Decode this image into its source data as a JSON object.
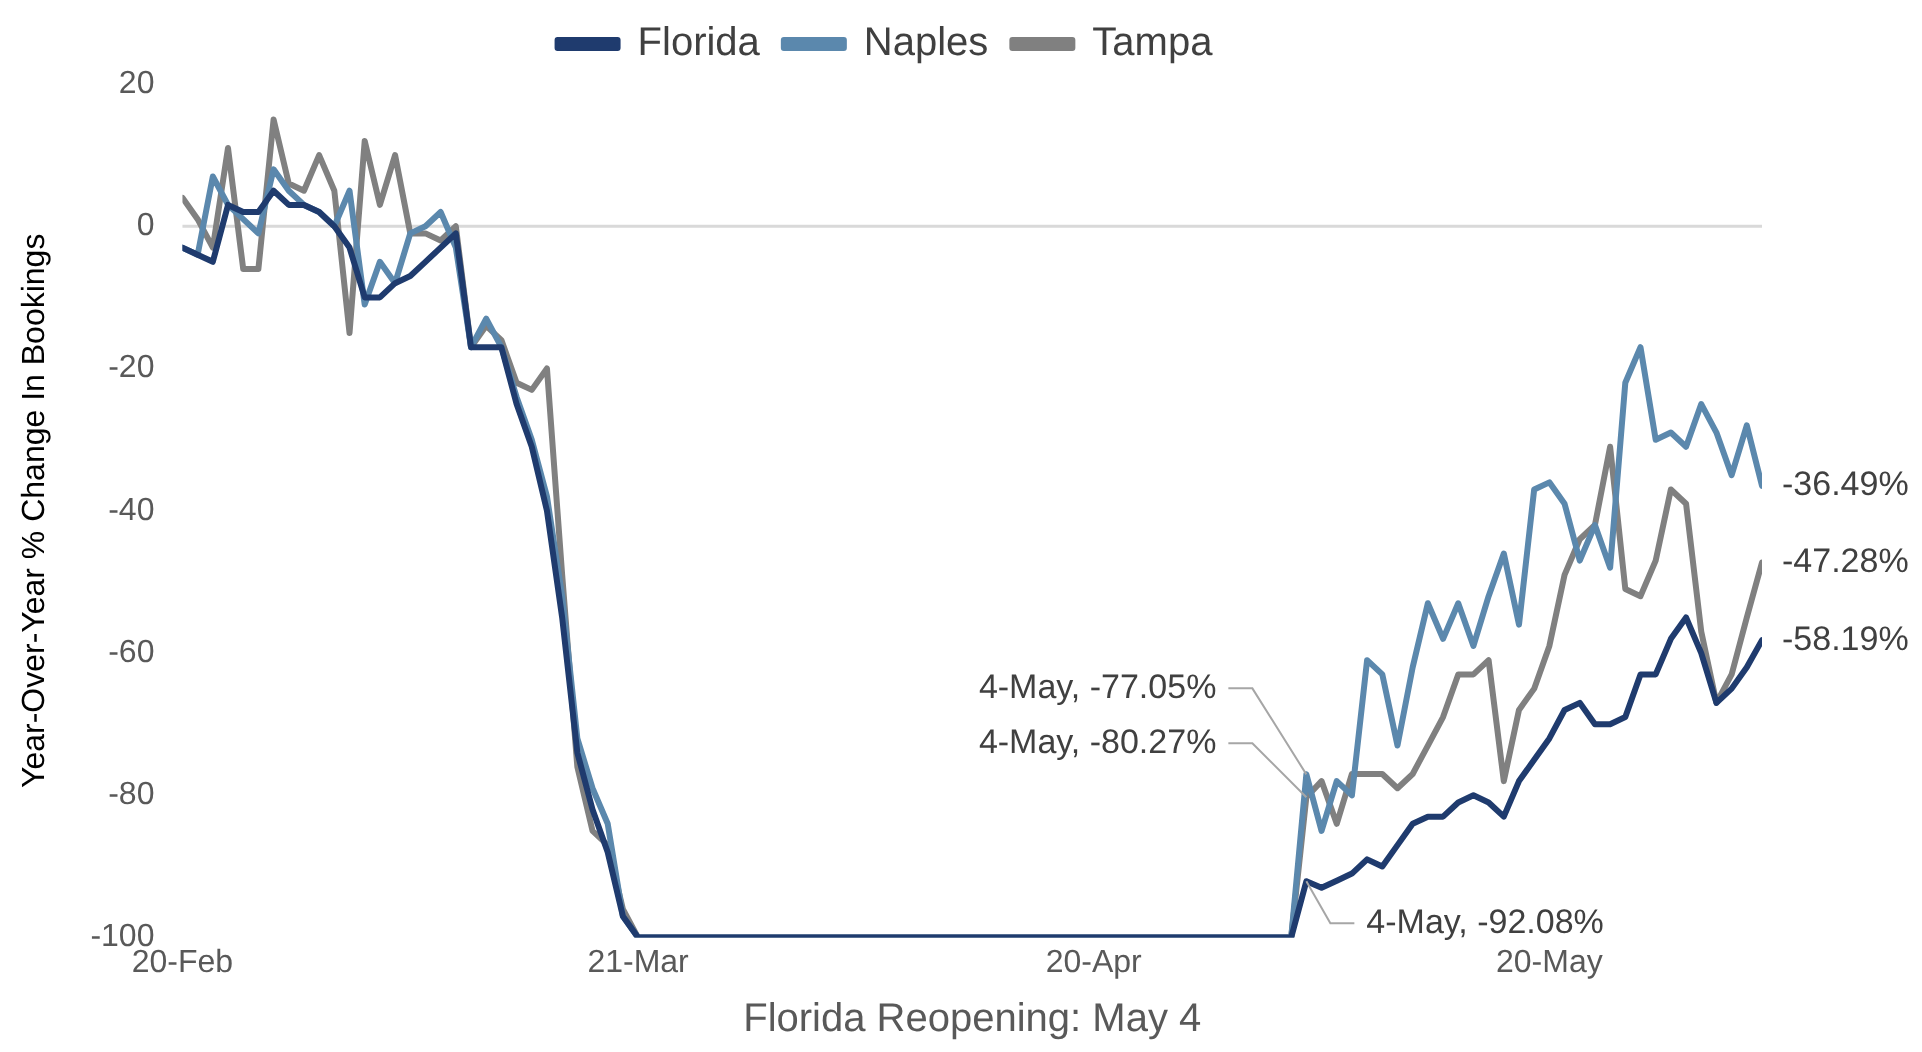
{
  "chart_data": {
    "type": "line",
    "xlabel": "Florida Reopening: May 4",
    "ylabel": "Year-Over-Year % Change In Bookings",
    "x": [
      "--02-20",
      "--02-21",
      "--02-22",
      "--02-23",
      "--02-24",
      "--02-25",
      "--02-26",
      "--02-27",
      "--02-28",
      "--02-29",
      "--03-01",
      "--03-02",
      "--03-03",
      "--03-04",
      "--03-05",
      "--03-06",
      "--03-07",
      "--03-08",
      "--03-09",
      "--03-10",
      "--03-11",
      "--03-12",
      "--03-13",
      "--03-14",
      "--03-15",
      "--03-16",
      "--03-17",
      "--03-18",
      "--03-19",
      "--03-20",
      "--03-21",
      "--05-03",
      "--05-04",
      "--05-05",
      "--05-06",
      "--05-07",
      "--05-08",
      "--05-09",
      "--05-10",
      "--05-11",
      "--05-12",
      "--05-13",
      "--05-14",
      "--05-15",
      "--05-16",
      "--05-17",
      "--05-18",
      "--05-19",
      "--05-20",
      "--05-21",
      "--05-22",
      "--05-23",
      "--05-24",
      "--05-25",
      "--05-26",
      "--05-27",
      "--05-28",
      "--05-29",
      "--05-30",
      "--05-31",
      "--06-01",
      "--06-02",
      "--06-03"
    ],
    "series": [
      {
        "name": "Florida",
        "color": "#1f3b6e",
        "values": [
          -3,
          -4,
          -5,
          3,
          2,
          2,
          5,
          3,
          3,
          2,
          0,
          -3,
          -10,
          -10,
          -8,
          -7,
          -5,
          -3,
          -1,
          -17,
          -17,
          -17,
          -25,
          -31,
          -40,
          -55,
          -74,
          -82,
          -88,
          -97,
          -100,
          -100,
          -92.08,
          -93,
          -92,
          -91,
          -89,
          -90,
          -87,
          -84,
          -83,
          -83,
          -81,
          -80,
          -81,
          -83,
          -78,
          -75,
          -72,
          -68,
          -67,
          -70,
          -70,
          -69,
          -63,
          -63,
          -58,
          -55,
          -60,
          -67,
          -65,
          -62,
          -58.19
        ]
      },
      {
        "name": "Naples",
        "color": "#5b88ad",
        "values": [
          -3,
          -4,
          7,
          3,
          1,
          -1,
          8,
          5,
          3,
          2,
          0,
          5,
          -11,
          -5,
          -8,
          -1,
          0,
          2,
          -3,
          -17,
          -13,
          -17,
          -24,
          -30,
          -38,
          -52,
          -72,
          -79,
          -84,
          -97,
          -100,
          -100,
          -77.05,
          -85,
          -78,
          -80,
          -61,
          -63,
          -73,
          -62,
          -53,
          -58,
          -53,
          -59,
          -52,
          -46,
          -56,
          -37,
          -36,
          -39,
          -47,
          -42,
          -48,
          -22,
          -17,
          -30,
          -29,
          -31,
          -25,
          -29,
          -35,
          -28,
          -36.49
        ]
      },
      {
        "name": "Tampa",
        "color": "#808080",
        "values": [
          4,
          1,
          -3,
          11,
          -6,
          -6,
          15,
          6,
          5,
          10,
          5,
          -15,
          12,
          3,
          10,
          -1,
          -1,
          -2,
          0,
          -17,
          -14,
          -16,
          -22,
          -23,
          -20,
          -49,
          -76,
          -85,
          -87,
          -96,
          -100,
          -100,
          -80.27,
          -78,
          -84,
          -77,
          -77,
          -77,
          -79,
          -77,
          -73,
          -69,
          -63,
          -63,
          -61,
          -78,
          -68,
          -65,
          -59,
          -49,
          -44,
          -42,
          -31,
          -51,
          -52,
          -47,
          -37,
          -39,
          -57,
          -67,
          -63,
          -55,
          -47.28
        ]
      }
    ],
    "xlim": [
      "--02-20",
      "--06-03"
    ],
    "xticks": [
      {
        "value": "--02-20",
        "label": "20-Feb"
      },
      {
        "value": "--03-21",
        "label": "21-Mar"
      },
      {
        "value": "--04-20",
        "label": "20-Apr"
      },
      {
        "value": "--05-20",
        "label": "20-May"
      }
    ],
    "ylim": [
      -100,
      20
    ],
    "yticks": [
      -100,
      -80,
      -60,
      -40,
      -20,
      0,
      20
    ],
    "ref_lines": [
      {
        "axis": "y",
        "value": 0,
        "color": "#d9d9d9"
      }
    ],
    "legend": "top",
    "annotations": [
      {
        "text": "4-May, -77.05%",
        "x": "--05-04",
        "y": -77.05
      },
      {
        "text": "4-May, -80.27%",
        "x": "--05-04",
        "y": -80.27
      },
      {
        "text": "4-May, -92.08%",
        "x": "--05-04",
        "y": -92.08
      },
      {
        "text": "-36.49%",
        "x": "--06-03",
        "y": -36.49
      },
      {
        "text": "-47.28%",
        "x": "--06-03",
        "y": -47.28
      },
      {
        "text": "-58.19%",
        "x": "--06-03",
        "y": -58.19
      }
    ]
  }
}
